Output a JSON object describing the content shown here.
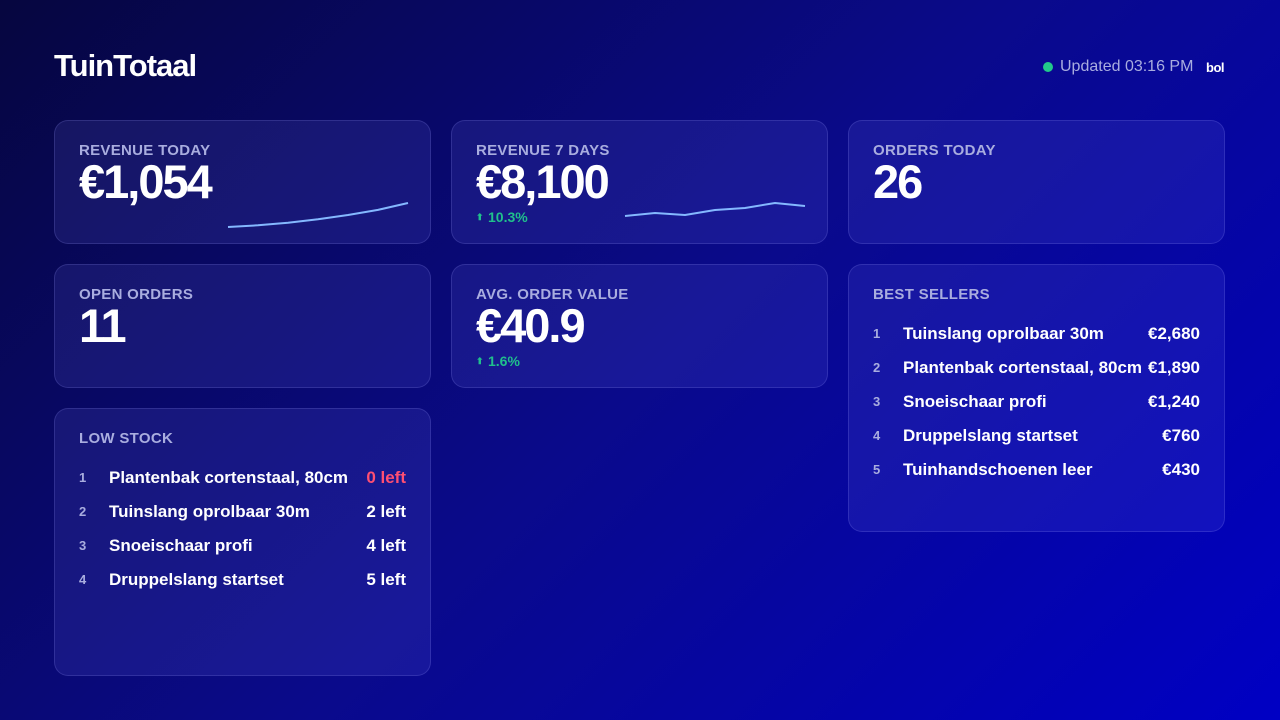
{
  "header": {
    "title": "TuinTotaal",
    "status": "Updated 03:16 PM",
    "brand": "bol"
  },
  "kpis": [
    {
      "label": "REVENUE TODAY",
      "value": "€1,054",
      "sparkline": [
        0,
        2,
        5,
        9,
        14,
        20,
        28
      ]
    },
    {
      "label": "REVENUE 7 DAYS",
      "value": "€8,100",
      "delta": "10.3%",
      "sparkline": [
        10,
        13,
        11,
        16,
        18,
        23,
        20
      ]
    },
    {
      "label": "ORDERS TODAY",
      "value": "26"
    },
    {
      "label": "OPEN ORDERS",
      "value": "11"
    },
    {
      "label": "AVG. ORDER VALUE",
      "value": "€40.9",
      "delta": "1.6%"
    }
  ],
  "best_sellers": {
    "title": "BEST SELLERS",
    "items": [
      {
        "rank": "1",
        "name": "Tuinslang oprolbaar 30m",
        "value": "€2,680"
      },
      {
        "rank": "2",
        "name": "Plantenbak cortenstaal, 80cm",
        "value": "€1,890"
      },
      {
        "rank": "3",
        "name": "Snoeischaar profi",
        "value": "€1,240"
      },
      {
        "rank": "4",
        "name": "Druppelslang startset",
        "value": "€760"
      },
      {
        "rank": "5",
        "name": "Tuinhandschoenen leer",
        "value": "€430"
      }
    ]
  },
  "low_stock": {
    "title": "LOW STOCK",
    "items": [
      {
        "rank": "1",
        "name": "Plantenbak cortenstaal, 80cm",
        "value": "0 left",
        "color": "#ff4f72"
      },
      {
        "rank": "2",
        "name": "Tuinslang oprolbaar 30m",
        "value": "2 left"
      },
      {
        "rank": "3",
        "name": "Snoeischaar profi",
        "value": "4 left"
      },
      {
        "rank": "4",
        "name": "Druppelslang startset",
        "value": "5 left"
      }
    ]
  }
}
